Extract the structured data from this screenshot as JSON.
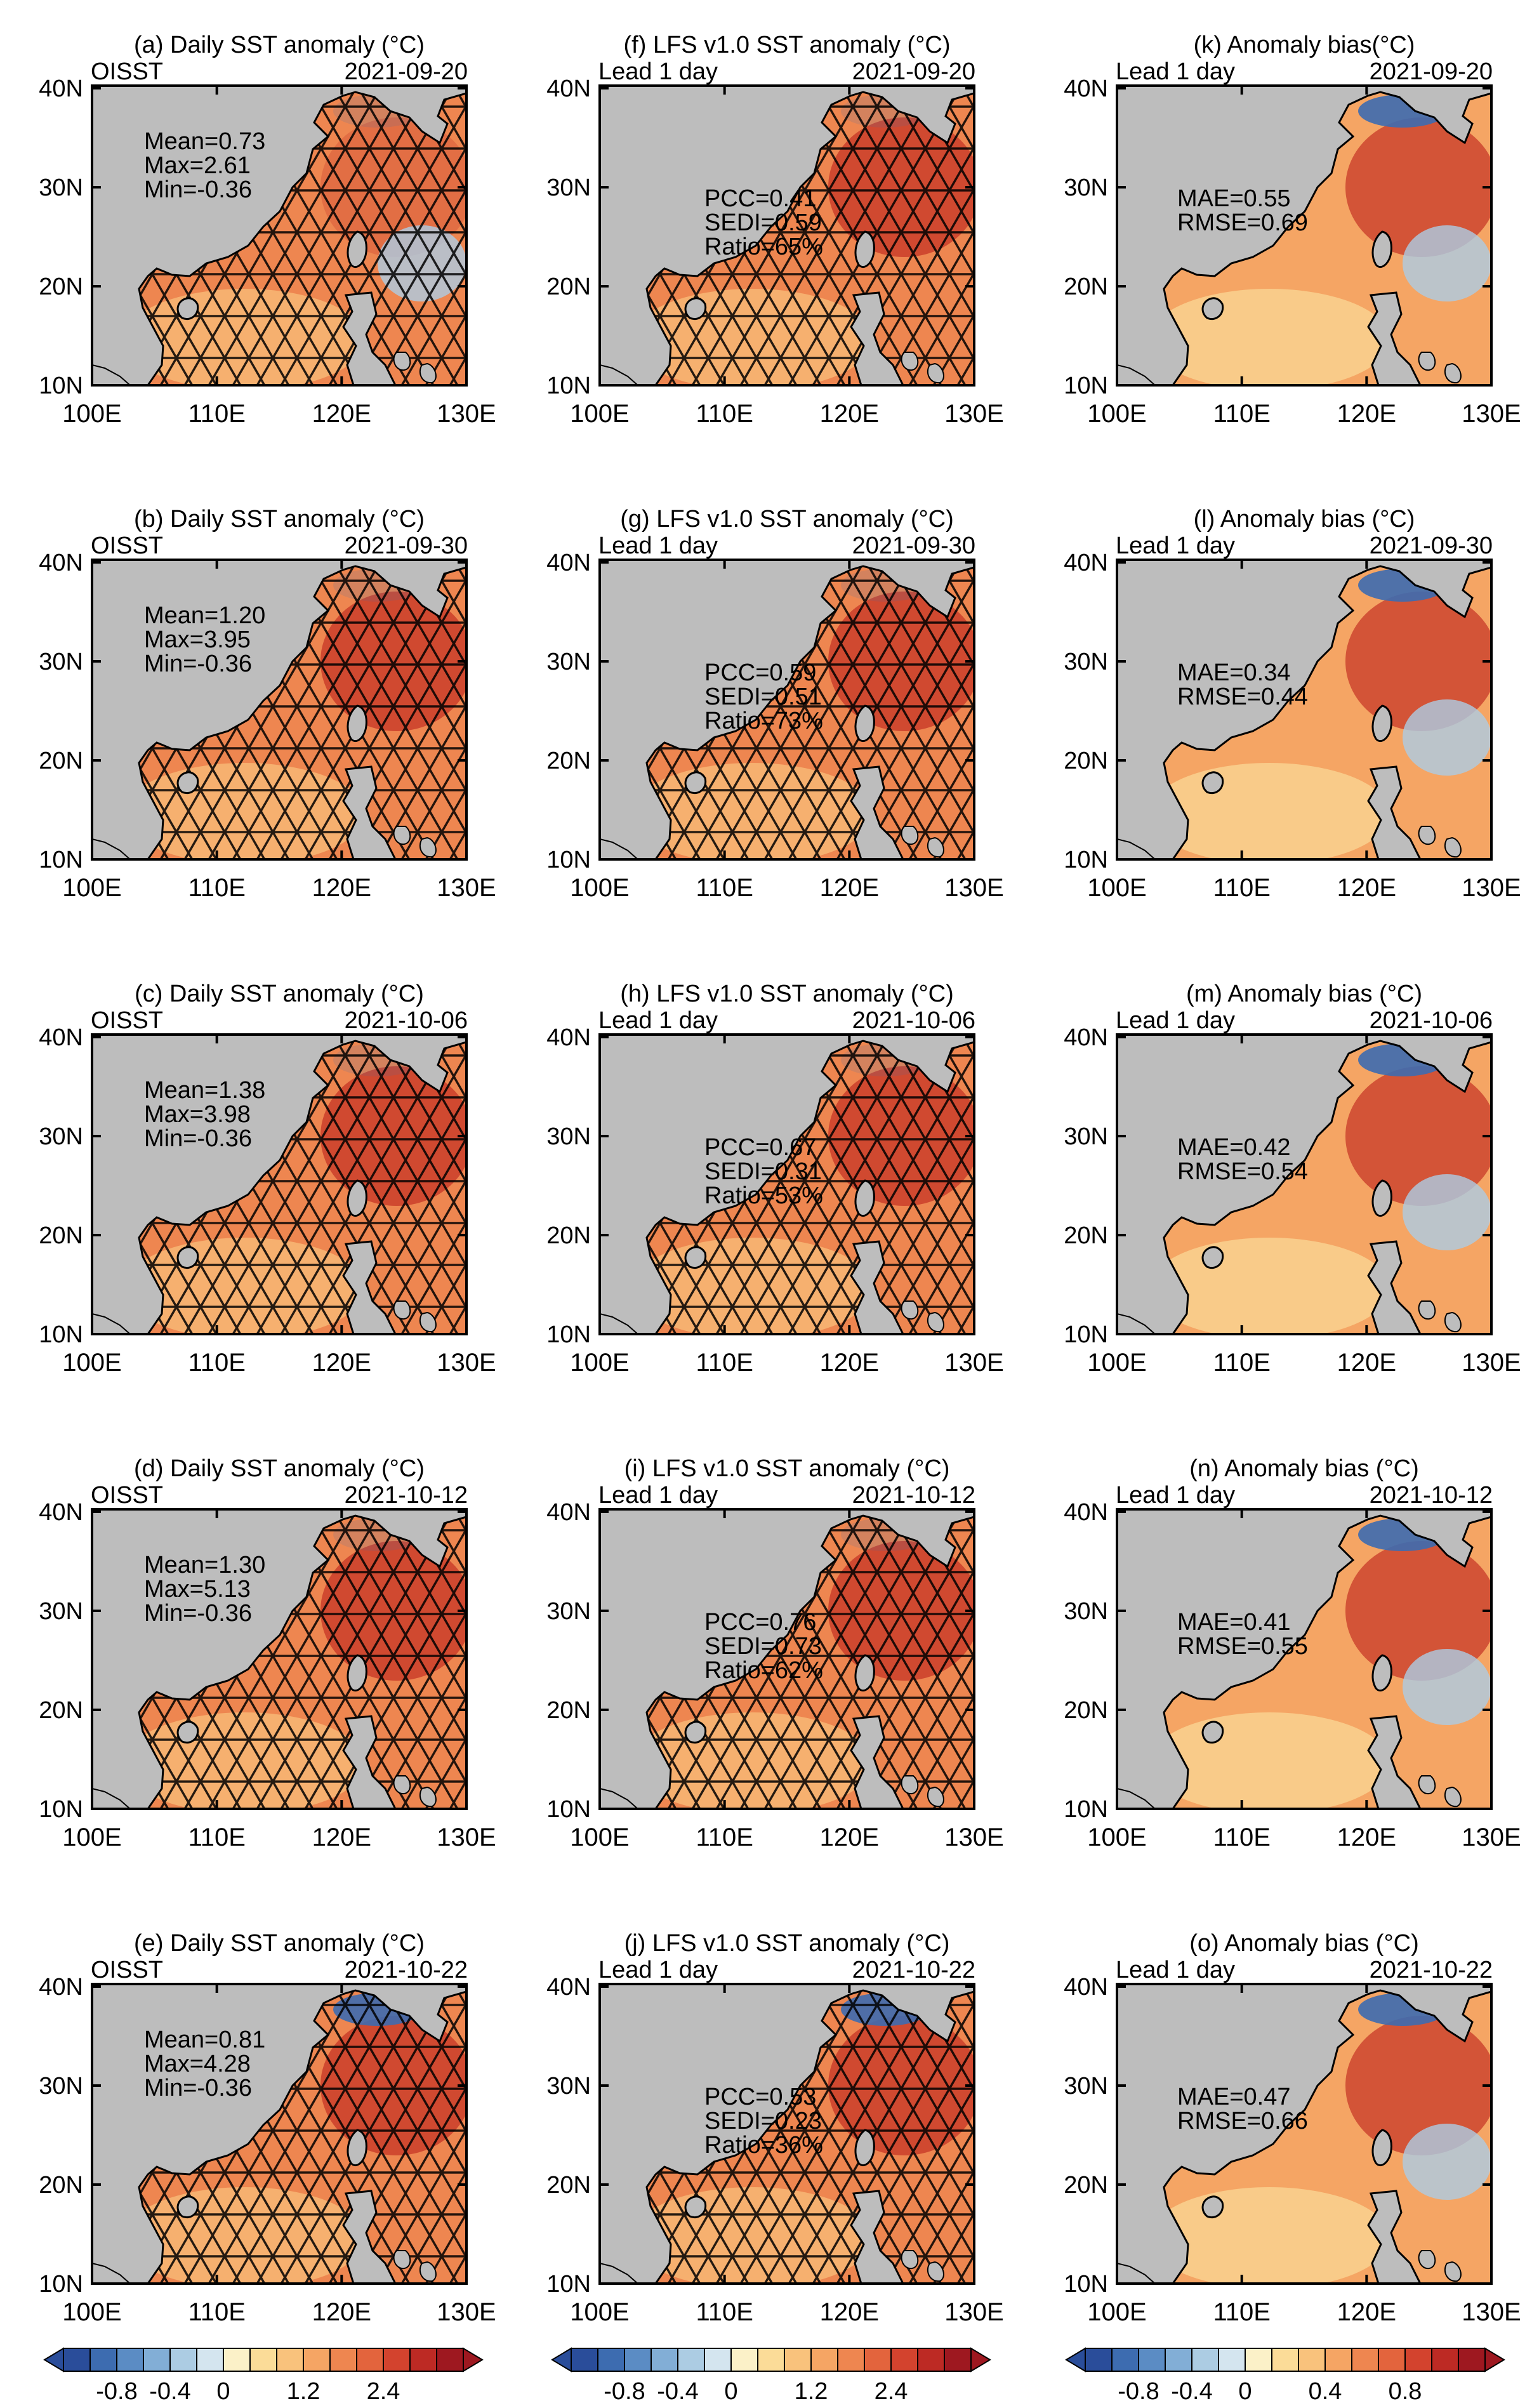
{
  "columns": [
    {
      "key": "obs",
      "title": "Daily SST anomaly (°C)",
      "source_label": "OISST",
      "colorbar": "sst"
    },
    {
      "key": "fcst",
      "title": "LFS v1.0 SST anomaly (°C)",
      "source_label": "Lead 1 day",
      "colorbar": "sst"
    },
    {
      "key": "bias",
      "title": "Anomaly bias (°C)",
      "source_label": "Lead 1 day",
      "colorbar": "bias"
    }
  ],
  "panels": [
    {
      "id": "a",
      "column": "obs",
      "row": 0,
      "title": "(a) Daily SST anomaly (°C)",
      "left_label": "OISST",
      "date": "2021-09-20",
      "stats": [
        "Mean=0.73",
        "Max=2.61",
        "Min=-0.36"
      ]
    },
    {
      "id": "b",
      "column": "obs",
      "row": 1,
      "title": "(b) Daily SST anomaly (°C)",
      "left_label": "OISST",
      "date": "2021-09-30",
      "stats": [
        "Mean=1.20",
        "Max=3.95",
        "Min=-0.36"
      ]
    },
    {
      "id": "c",
      "column": "obs",
      "row": 2,
      "title": "(c) Daily SST anomaly (°C)",
      "left_label": "OISST",
      "date": "2021-10-06",
      "stats": [
        "Mean=1.38",
        "Max=3.98",
        "Min=-0.36"
      ]
    },
    {
      "id": "d",
      "column": "obs",
      "row": 3,
      "title": "(d) Daily SST anomaly (°C)",
      "left_label": "OISST",
      "date": "2021-10-12",
      "stats": [
        "Mean=1.30",
        "Max=5.13",
        "Min=-0.36"
      ]
    },
    {
      "id": "e",
      "column": "obs",
      "row": 4,
      "title": "(e) Daily SST anomaly (°C)",
      "left_label": "OISST",
      "date": "2021-10-22",
      "stats": [
        "Mean=0.81",
        "Max=4.28",
        "Min=-0.36"
      ]
    },
    {
      "id": "f",
      "column": "fcst",
      "row": 0,
      "title": "(f) LFS v1.0 SST anomaly (°C)",
      "left_label": "Lead 1 day",
      "date": "2021-09-20",
      "stats": [
        "PCC=0.41",
        "SEDI=0.59",
        "Ratio=65%"
      ]
    },
    {
      "id": "g",
      "column": "fcst",
      "row": 1,
      "title": "(g) LFS v1.0 SST anomaly (°C)",
      "left_label": "Lead 1 day",
      "date": "2021-09-30",
      "stats": [
        "PCC=0.59",
        "SEDI=0.51",
        "Ratio=73%"
      ]
    },
    {
      "id": "h",
      "column": "fcst",
      "row": 2,
      "title": "(h) LFS v1.0 SST anomaly (°C)",
      "left_label": "Lead 1 day",
      "date": "2021-10-06",
      "stats": [
        "PCC=0.67",
        "SEDI=0.31",
        "Ratio=53%"
      ]
    },
    {
      "id": "i",
      "column": "fcst",
      "row": 3,
      "title": "(i) LFS v1.0 SST anomaly (°C)",
      "left_label": "Lead 1 day",
      "date": "2021-10-12",
      "stats": [
        "PCC=0.76",
        "SEDI=0.73",
        "Ratio=62%"
      ]
    },
    {
      "id": "j",
      "column": "fcst",
      "row": 4,
      "title": "(j) LFS v1.0 SST anomaly (°C)",
      "left_label": "Lead 1 day",
      "date": "2021-10-22",
      "stats": [
        "PCC=0.53",
        "SEDI=0.23",
        "Ratio=36%"
      ]
    },
    {
      "id": "k",
      "column": "bias",
      "row": 0,
      "title": "(k) Anomaly bias(°C)",
      "left_label": "Lead 1 day",
      "date": "2021-09-20",
      "stats": [
        "MAE=0.55",
        "RMSE=0.69"
      ]
    },
    {
      "id": "l",
      "column": "bias",
      "row": 1,
      "title": "(l) Anomaly bias (°C)",
      "left_label": "Lead 1 day",
      "date": "2021-09-30",
      "stats": [
        "MAE=0.34",
        "RMSE=0.44"
      ]
    },
    {
      "id": "m",
      "column": "bias",
      "row": 2,
      "title": "(m) Anomaly bias (°C)",
      "left_label": "Lead 1 day",
      "date": "2021-10-06",
      "stats": [
        "MAE=0.42",
        "RMSE=0.54"
      ]
    },
    {
      "id": "n",
      "column": "bias",
      "row": 3,
      "title": "(n) Anomaly bias (°C)",
      "left_label": "Lead 1 day",
      "date": "2021-10-12",
      "stats": [
        "MAE=0.41",
        "RMSE=0.55"
      ]
    },
    {
      "id": "o",
      "column": "bias",
      "row": 4,
      "title": "(o) Anomaly bias (°C)",
      "left_label": "Lead 1 day",
      "date": "2021-10-22",
      "stats": [
        "MAE=0.47",
        "RMSE=0.66"
      ]
    }
  ],
  "axes": {
    "lat_ticks": [
      "40N",
      "30N",
      "20N",
      "10N"
    ],
    "lon_ticks": [
      "100E",
      "110E",
      "120E",
      "130E"
    ],
    "lat_range": [
      10,
      42
    ],
    "lon_range": [
      100,
      130
    ]
  },
  "colorbars": {
    "sst": {
      "labels": [
        "-0.8",
        "-0.4",
        "0",
        "1.2",
        "2.4"
      ],
      "colors": [
        "#2a4d9a",
        "#3d6cb0",
        "#5b8cc4",
        "#82aed6",
        "#acccE3",
        "#d4e5ef",
        "#fbf1c8",
        "#fbdc98",
        "#f9c27c",
        "#f5a564",
        "#ee8650",
        "#e3643d",
        "#d3432e",
        "#bd2a24",
        "#9e1820"
      ]
    },
    "bias": {
      "labels": [
        "-0.8",
        "-0.4",
        "0",
        "0.4",
        "0.8"
      ],
      "colors": [
        "#2a4d9a",
        "#3d6cb0",
        "#5b8cc4",
        "#82aed6",
        "#acccE3",
        "#d4e5ef",
        "#fbf1c8",
        "#fbdc98",
        "#f9c27c",
        "#f5a564",
        "#ee8650",
        "#e3643d",
        "#d3432e",
        "#bd2a24",
        "#9e1820"
      ]
    }
  },
  "colors": {
    "land": "#bdbdbd",
    "ocean_warm": "#ee8650",
    "ocean_hot": "#c0281f",
    "ocean_mild": "#f9c27c",
    "ocean_cold": "#3d6cb0",
    "hatch": "#000000"
  }
}
